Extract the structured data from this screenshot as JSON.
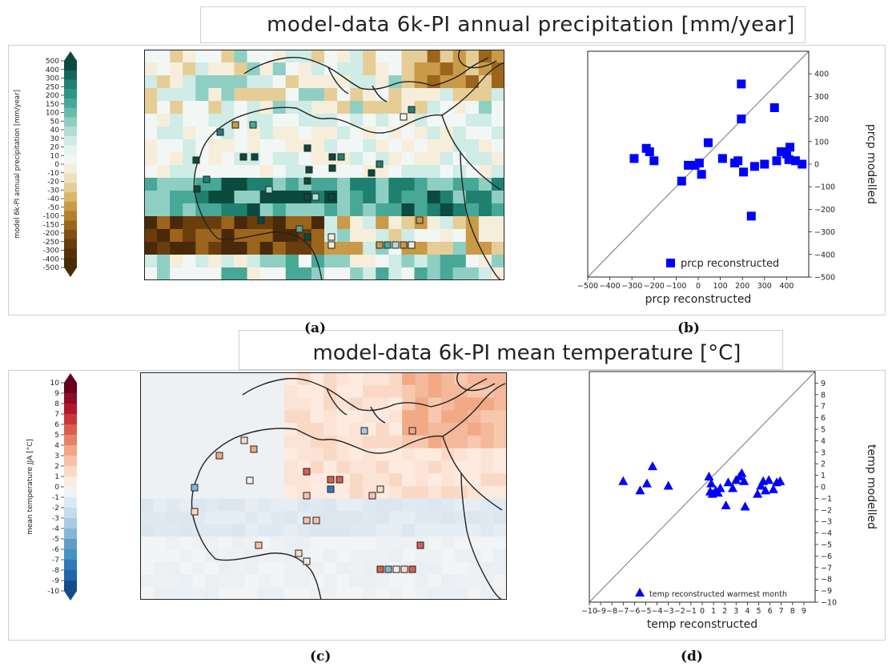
{
  "titles": {
    "top": "model-data 6k-PI annual precipitation [mm/year]",
    "bottom": "model-data 6k-PI mean temperature [°C]"
  },
  "captions": {
    "a": "(a)",
    "b": "(b)",
    "c": "(c)",
    "d": "(d)"
  },
  "colorbars": {
    "precip": {
      "label": "model 6k-PI annual precipitation [mm/year]",
      "ticks": [
        "500",
        "400",
        "300",
        "250",
        "200",
        "150",
        "100",
        "50",
        "40",
        "30",
        "20",
        "10",
        "0",
        "-10",
        "-20",
        "-30",
        "-40",
        "-50",
        "-100",
        "-150",
        "-200",
        "-250",
        "-300",
        "-400",
        "-500"
      ],
      "colors_top": [
        "#0b4a3f",
        "#13665a",
        "#1f8070",
        "#2e9484",
        "#47a898",
        "#68bcad",
        "#8fcfc3",
        "#b0ded6",
        "#cfece7",
        "#e6f4f1",
        "#f2f7f5"
      ],
      "colors_bottom": [
        "#f6eedb",
        "#efe0bd",
        "#e6cd96",
        "#d9b56d",
        "#c99a48",
        "#b57f2d",
        "#9c651c",
        "#824e13",
        "#6a3d0d",
        "#55300a",
        "#4a2909"
      ]
    },
    "temp": {
      "label": "mean temperature JJA [°C]",
      "ticks": [
        "10",
        "9",
        "8",
        "7",
        "6",
        "5",
        "4",
        "3",
        "2",
        "1",
        "0",
        "-1",
        "-2",
        "-3",
        "-4",
        "-5",
        "-6",
        "-7",
        "-8",
        "-9",
        "-10"
      ],
      "colors_top": [
        "#67001f",
        "#8c0d25",
        "#b2182b",
        "#c8373c",
        "#d6604d",
        "#e58268",
        "#f4a582",
        "#f8c1a6",
        "#fbd9c5",
        "#fdebe0"
      ],
      "colors_bottom": [
        "#f1f4f7",
        "#dde9f2",
        "#c6dcec",
        "#a7cbe2",
        "#85b6d6",
        "#5f9cc8",
        "#4393c3",
        "#3079b5",
        "#2166ac",
        "#134c8a"
      ]
    }
  },
  "chart_data": [
    {
      "type": "heatmap",
      "title": "model-data 6k-PI annual precipitation [mm/year]",
      "colorbar_label": "model 6k-PI annual precipitation [mm/year]",
      "colorbar_range": [
        -500,
        500
      ],
      "region": "North Africa / Mediterranean / Arabian Peninsula",
      "site_markers": "squares colored by reconstructed precipitation"
    },
    {
      "type": "scatter",
      "xlabel": "prcp reconstructed",
      "ylabel": "prcp modelled",
      "xlim": [
        -500,
        500
      ],
      "ylim": [
        -500,
        500
      ],
      "xticks": [
        -500,
        -400,
        -300,
        -200,
        -100,
        0,
        100,
        200,
        300,
        400
      ],
      "yticks": [
        -500,
        -400,
        -300,
        -200,
        -100,
        0,
        100,
        200,
        300,
        400
      ],
      "legend": "prcp reconstructed",
      "legend_position": "bottom-right",
      "one_to_one_line": true,
      "points": [
        [
          -290,
          25
        ],
        [
          -235,
          70
        ],
        [
          -220,
          55
        ],
        [
          -200,
          15
        ],
        [
          -75,
          -75
        ],
        [
          -45,
          -5
        ],
        [
          -15,
          -5
        ],
        [
          5,
          5
        ],
        [
          15,
          -45
        ],
        [
          45,
          95
        ],
        [
          110,
          25
        ],
        [
          165,
          5
        ],
        [
          180,
          15
        ],
        [
          195,
          200
        ],
        [
          195,
          355
        ],
        [
          205,
          -35
        ],
        [
          240,
          -230
        ],
        [
          255,
          -10
        ],
        [
          300,
          0
        ],
        [
          345,
          250
        ],
        [
          355,
          15
        ],
        [
          375,
          55
        ],
        [
          400,
          45
        ],
        [
          410,
          20
        ],
        [
          415,
          75
        ],
        [
          440,
          15
        ],
        [
          470,
          0
        ]
      ]
    },
    {
      "type": "heatmap",
      "title": "model-data 6k-PI mean temperature [°C]",
      "colorbar_label": "mean temperature JJA [°C]",
      "colorbar_range": [
        -10,
        10
      ],
      "region": "North Africa / Mediterranean / Arabian Peninsula",
      "site_markers": "squares colored by reconstructed temperature"
    },
    {
      "type": "scatter",
      "xlabel": "temp reconstructed",
      "ylabel": "temp modelled",
      "xlim": [
        -10,
        10
      ],
      "ylim": [
        -10,
        10
      ],
      "xticks": [
        -10,
        -9,
        -8,
        -7,
        -6,
        -5,
        -4,
        -3,
        -2,
        -1,
        0,
        1,
        2,
        3,
        4,
        5,
        6,
        7,
        8,
        9
      ],
      "yticks": [
        -10,
        -9,
        -8,
        -7,
        -6,
        -5,
        -4,
        -3,
        -2,
        -1,
        0,
        1,
        2,
        3,
        4,
        5,
        6,
        7,
        8,
        9
      ],
      "legend": "temp reconstructed warmest month",
      "legend_position": "bottom-right",
      "one_to_one_line": true,
      "points": [
        [
          -7.0,
          0.5
        ],
        [
          -5.5,
          -0.3
        ],
        [
          -4.9,
          0.3
        ],
        [
          -4.4,
          1.8
        ],
        [
          -3.0,
          0.1
        ],
        [
          0.6,
          0.9
        ],
        [
          0.7,
          -0.4
        ],
        [
          0.8,
          0.3
        ],
        [
          0.9,
          -0.6
        ],
        [
          1.2,
          -0.3
        ],
        [
          1.4,
          -0.5
        ],
        [
          1.6,
          -0.1
        ],
        [
          2.1,
          -1.6
        ],
        [
          2.3,
          0.4
        ],
        [
          2.7,
          -0.1
        ],
        [
          3.0,
          0.6
        ],
        [
          3.3,
          0.9
        ],
        [
          3.5,
          1.2
        ],
        [
          3.7,
          0.5
        ],
        [
          3.8,
          -1.7
        ],
        [
          4.9,
          -0.6
        ],
        [
          5.2,
          0.1
        ],
        [
          5.4,
          0.5
        ],
        [
          5.6,
          -0.3
        ],
        [
          5.9,
          0.6
        ],
        [
          6.3,
          -0.2
        ],
        [
          6.6,
          0.4
        ],
        [
          6.9,
          0.5
        ]
      ]
    }
  ]
}
